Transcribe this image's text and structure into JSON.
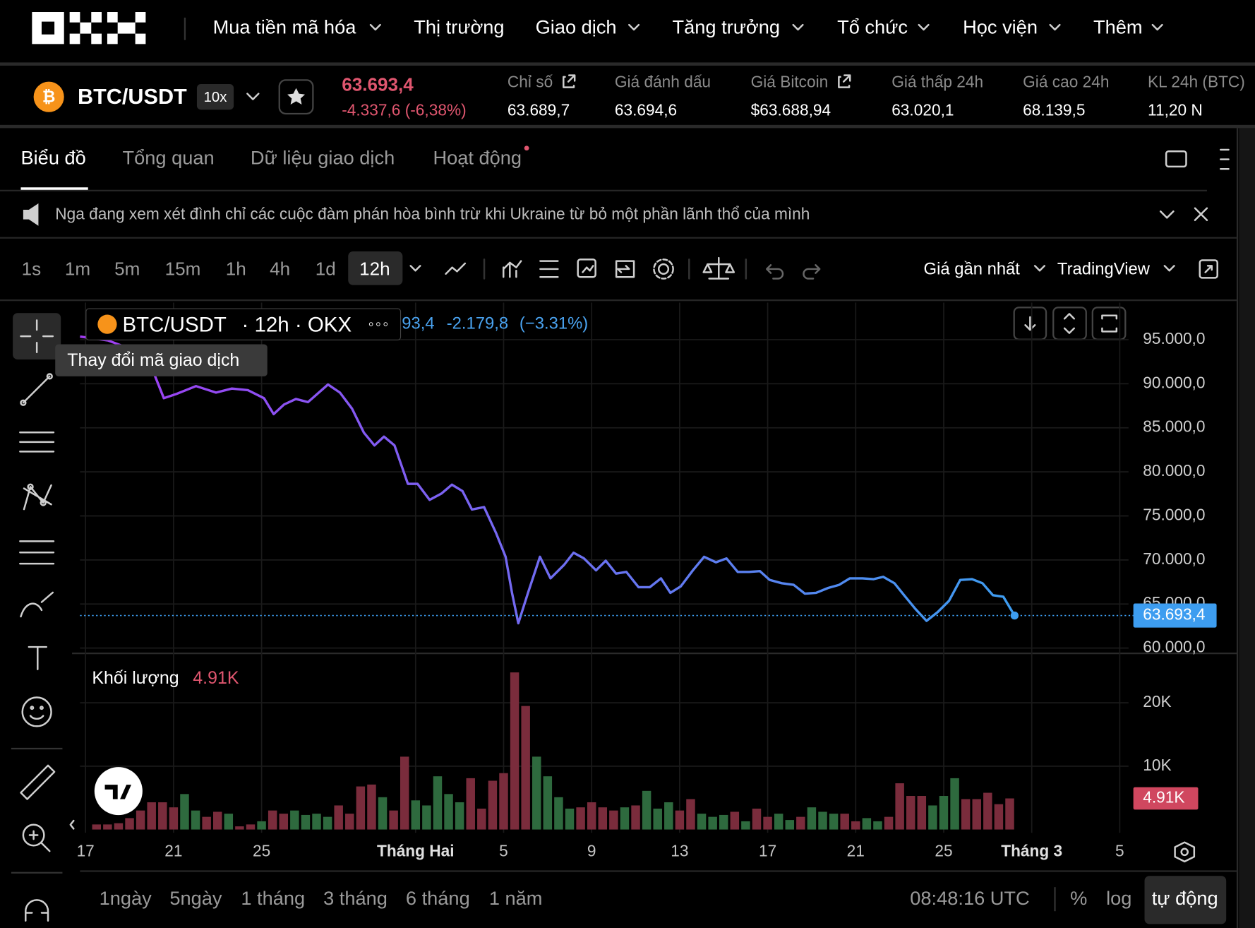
{
  "nav": [
    "Mua tiền mã hóa",
    "Thị trường",
    "Giao dịch",
    "Tăng trưởng",
    "Tổ chức",
    "Học viện",
    "Thêm"
  ],
  "ticker": {
    "pair": "BTC/USDT",
    "leverage": "10x",
    "price": "63.693,4",
    "change": "-4.337,6 (-6,38%)",
    "stats": [
      {
        "label": "Chỉ số",
        "value": "63.689,7"
      },
      {
        "label": "Giá đánh dấu",
        "value": "63.694,6"
      },
      {
        "label": "Giá Bitcoin",
        "value": "$63.688,94"
      },
      {
        "label": "Giá thấp 24h",
        "value": "63.020,1"
      },
      {
        "label": "Giá cao 24h",
        "value": "68.139,5"
      },
      {
        "label": "KL 24h (BTC)",
        "value": "11,20 N"
      }
    ]
  },
  "tabs": [
    "Biểu đồ",
    "Tổng quan",
    "Dữ liệu giao dịch",
    "Hoạt động"
  ],
  "news": "Nga đang xem xét đình chỉ các cuộc đàm phán hòa bình trừ khi Ukraine từ bỏ một phần lãnh thổ của mình",
  "toolbar": {
    "intervals": [
      "1s",
      "1m",
      "5m",
      "15m",
      "1h",
      "4h",
      "1d",
      "12h"
    ],
    "price_source": "Giá gần nhất",
    "chart_provider": "TradingView"
  },
  "legend": {
    "symbol": "BTC/USDT",
    "details": "· 12h · OKX",
    "last": "93,4",
    "change": "-2.179,8",
    "change_pct": "(−3.31%)"
  },
  "tooltip": "Thay đổi mã giao dịch",
  "chart_data": [
    {
      "type": "line",
      "x": [
        -0.25,
        1.02,
        2.47,
        3.02,
        3.56,
        4.11,
        5.02,
        5.93,
        6.65,
        7.38,
        8.11,
        8.55,
        9.02,
        9.56,
        10.11,
        11.02,
        11.56,
        12.11,
        12.65,
        13.13,
        13.56,
        14.04,
        14.65,
        15.09,
        15.64,
        16.18,
        16.65,
        17.13,
        17.56,
        18.11,
        18.65,
        19.09,
        19.38,
        19.67,
        20.11,
        20.65,
        21.13,
        21.75,
        22.18,
        22.65,
        23.2,
        23.64,
        24.11,
        24.58,
        25.13,
        25.64,
        26.15,
        26.58,
        27.05,
        27.6,
        28.11,
        28.65,
        29.13,
        29.64,
        30.15,
        30.65,
        31.09,
        31.64,
        32.18,
        32.69,
        33.2,
        33.75,
        34.25,
        34.73,
        35.31,
        35.82,
        36.25,
        36.76,
        37.2,
        37.71,
        38.22,
        38.73,
        39.24,
        39.75,
        40.29,
        40.76,
        41.24,
        41.71,
        42.22
      ],
      "values": [
        95360,
        94910,
        93550,
        91730,
        88360,
        88820,
        89730,
        89000,
        89450,
        89270,
        88360,
        86550,
        87640,
        88270,
        87910,
        89910,
        89000,
        87180,
        84450,
        83000,
        84000,
        83000,
        78640,
        78640,
        76820,
        77550,
        78550,
        77820,
        75730,
        76000,
        73090,
        70360,
        66270,
        62820,
        66270,
        70360,
        67910,
        69450,
        70820,
        70180,
        68820,
        69910,
        68450,
        68640,
        66910,
        66910,
        67910,
        66270,
        67000,
        68820,
        70360,
        69730,
        70180,
        68640,
        68640,
        68730,
        67730,
        67360,
        67180,
        66180,
        66270,
        66820,
        67180,
        67910,
        67910,
        67820,
        68090,
        67360,
        66000,
        64450,
        63090,
        64090,
        65360,
        67730,
        67820,
        67360,
        66000,
        65820,
        63693.4
      ],
      "xlim": [
        -0.25,
        47.4
      ],
      "ylim": [
        59400,
        99200
      ],
      "yticks": [
        {
          "value": 95000,
          "label": "95.000,0"
        },
        {
          "value": 90000,
          "label": "90.000,0"
        },
        {
          "value": 85000,
          "label": "85.000,0"
        },
        {
          "value": 80000,
          "label": "80.000,0"
        },
        {
          "value": 75000,
          "label": "75.000,0"
        },
        {
          "value": 70000,
          "label": "70.000,0"
        },
        {
          "value": 65000,
          "label": "65.000,0"
        },
        {
          "value": 60000,
          "label": "60.000,0"
        }
      ],
      "grid": true,
      "gradient": [
        "#a23cf2",
        "#3d9df0"
      ],
      "current_price": {
        "value": 63693.4,
        "label": "63.693,4"
      },
      "tag_color": "#3d9df0"
    },
    {
      "type": "bar",
      "title": "Khối lượng",
      "x": [
        0.5,
        1,
        1.5,
        2,
        2.5,
        3,
        3.5,
        4,
        4.5,
        5,
        5.5,
        6,
        6.5,
        7,
        7.5,
        8,
        8.5,
        9,
        9.5,
        10,
        10.5,
        11,
        11.5,
        12,
        12.5,
        13,
        13.5,
        14,
        14.5,
        15,
        15.5,
        16,
        16.5,
        17,
        17.5,
        18,
        18.5,
        19,
        19.5,
        20,
        20.5,
        21,
        21.5,
        22,
        22.5,
        23,
        23.5,
        24,
        24.5,
        25,
        25.5,
        26,
        26.5,
        27,
        27.5,
        28,
        28.5,
        29,
        29.5,
        30,
        30.5,
        31,
        31.5,
        32,
        32.5,
        33,
        33.5,
        34,
        34.5,
        35,
        35.5,
        36,
        36.5,
        37,
        37.5,
        38,
        38.5,
        39,
        39.5,
        40,
        40.5,
        41,
        41.5,
        42
      ],
      "values": [
        800,
        800,
        1000,
        1800,
        3000,
        4300,
        4300,
        3500,
        5600,
        3000,
        2000,
        2800,
        2500,
        500,
        800,
        1300,
        3000,
        2500,
        3000,
        2300,
        2500,
        2000,
        3800,
        2500,
        6800,
        7100,
        5100,
        3000,
        11500,
        4600,
        3800,
        8400,
        5600,
        4300,
        8100,
        3300,
        7700,
        8900,
        24800,
        19500,
        11500,
        8400,
        5100,
        3300,
        3500,
        4300,
        3500,
        3000,
        3500,
        3800,
        6100,
        3300,
        4300,
        3000,
        4800,
        2500,
        2000,
        2300,
        2800,
        1300,
        3300,
        2000,
        2500,
        1500,
        2000,
        3500,
        2800,
        2500,
        2500,
        1300,
        1800,
        1300,
        2000,
        7300,
        5300,
        5300,
        3800,
        5300,
        8100,
        4800,
        4800,
        5800,
        4000,
        4910
      ],
      "colors": [
        "#7a2c3c",
        "#7a2c3c",
        "#7a2c3c",
        "#7a2c3c",
        "#7a2c3c",
        "#7a2c3c",
        "#7a2c3c",
        "#7a2c3c",
        "#2e6a3e",
        "#2e6a3e",
        "#7a2c3c",
        "#7a2c3c",
        "#2e6a3e",
        "#7a2c3c",
        "#7a2c3c",
        "#2e6a3e",
        "#7a2c3c",
        "#7a2c3c",
        "#2e6a3e",
        "#2e6a3e",
        "#2e6a3e",
        "#2e6a3e",
        "#7a2c3c",
        "#7a2c3c",
        "#7a2c3c",
        "#7a2c3c",
        "#2e6a3e",
        "#7a2c3c",
        "#7a2c3c",
        "#2e6a3e",
        "#2e6a3e",
        "#2e6a3e",
        "#2e6a3e",
        "#2e6a3e",
        "#7a2c3c",
        "#7a2c3c",
        "#7a2c3c",
        "#7a2c3c",
        "#7a2c3c",
        "#7a2c3c",
        "#2e6a3e",
        "#2e6a3e",
        "#2e6a3e",
        "#2e6a3e",
        "#7a2c3c",
        "#7a2c3c",
        "#7a2c3c",
        "#7a2c3c",
        "#2e6a3e",
        "#7a2c3c",
        "#2e6a3e",
        "#2e6a3e",
        "#2e6a3e",
        "#7a2c3c",
        "#7a2c3c",
        "#2e6a3e",
        "#2e6a3e",
        "#2e6a3e",
        "#7a2c3c",
        "#2e6a3e",
        "#7a2c3c",
        "#7a2c3c",
        "#2e6a3e",
        "#2e6a3e",
        "#7a2c3c",
        "#2e6a3e",
        "#2e6a3e",
        "#2e6a3e",
        "#7a2c3c",
        "#7a2c3c",
        "#2e6a3e",
        "#2e6a3e",
        "#7a2c3c",
        "#7a2c3c",
        "#7a2c3c",
        "#7a2c3c",
        "#2e6a3e",
        "#2e6a3e",
        "#2e6a3e",
        "#7a2c3c",
        "#7a2c3c",
        "#7a2c3c",
        "#7a2c3c",
        "#7a2c3c"
      ],
      "xlim": [
        -0.25,
        47.4
      ],
      "xticks": [
        {
          "value": 0,
          "label": "17"
        },
        {
          "value": 4,
          "label": "21"
        },
        {
          "value": 8,
          "label": "25"
        },
        {
          "value": 15,
          "label": "Tháng Hai"
        },
        {
          "value": 19,
          "label": "5"
        },
        {
          "value": 23,
          "label": "9"
        },
        {
          "value": 27,
          "label": "13"
        },
        {
          "value": 31,
          "label": "17"
        },
        {
          "value": 35,
          "label": "21"
        },
        {
          "value": 39,
          "label": "25"
        },
        {
          "value": 43,
          "label": "Tháng 3"
        },
        {
          "value": 47,
          "label": "5"
        }
      ],
      "ylim": [
        0,
        27300
      ],
      "yticks": [
        {
          "value": 20000,
          "label": "20K"
        },
        {
          "value": 10000,
          "label": "10K"
        }
      ],
      "current": {
        "value": 4910,
        "label": "4.91K"
      },
      "tag_color": "#d0475f"
    }
  ],
  "ranges": [
    "1ngày",
    "5ngày",
    "1 tháng",
    "3 tháng",
    "6 tháng",
    "1 năm"
  ],
  "clock": "08:48:16 UTC",
  "scale_options": [
    "%",
    "log",
    "tự động"
  ]
}
